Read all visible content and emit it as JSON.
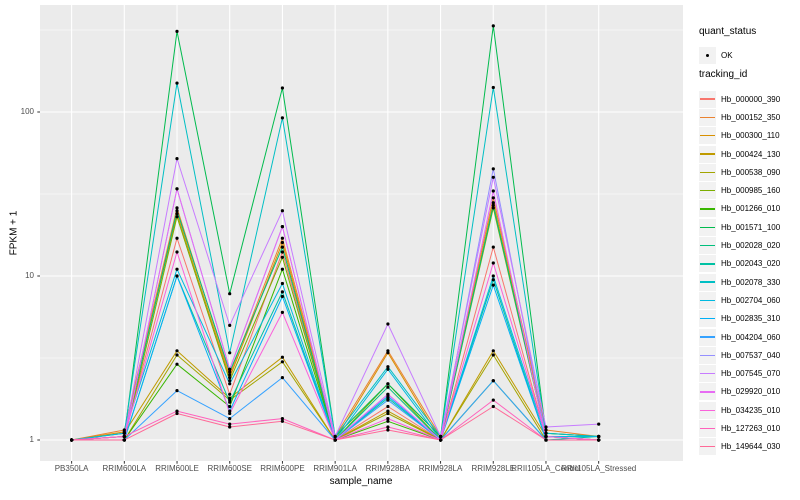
{
  "legend": {
    "quant_title": "quant_status",
    "quant_item": "OK",
    "quant_shape": "point-icon",
    "tracking_title": "tracking_id"
  },
  "colors": {
    "panel_bg": "#EBEBEB",
    "grid": "#FFFFFF",
    "legend_key_bg": "#F2F2F2",
    "tick_text": "#4D4D4D",
    "axis_tick": "#333333",
    "point": "#000000"
  },
  "chart_data": {
    "type": "line",
    "title": "",
    "xlabel": "sample_name",
    "ylabel": "FPKM + 1",
    "y_scale": "log10",
    "y_ticks": [
      1,
      10,
      100
    ],
    "ylim": [
      1,
      360
    ],
    "grid": true,
    "legend_position": "right",
    "point_shape": "filled-circle-black",
    "categories": [
      "PB350LA",
      "RRIM600LA",
      "RRIM600LE",
      "RRIM600SE",
      "RRIM600PE",
      "RRIM901LA",
      "RRIM928BA",
      "RRIM928LA",
      "RRIM928LE",
      "RRII105LA_Control",
      "RRII105LA_Stressed"
    ],
    "series": [
      {
        "name": "Hb_000000_390",
        "color": "#F8766D",
        "values": [
          1,
          1.05,
          17,
          1.9,
          14,
          1,
          1.6,
          1,
          15,
          1.05,
          1
        ]
      },
      {
        "name": "Hb_000152_350",
        "color": "#EA8331",
        "values": [
          1,
          1.15,
          26,
          2.5,
          17,
          1.05,
          3.5,
          1.05,
          30,
          1.15,
          1.05
        ]
      },
      {
        "name": "Hb_000300_110",
        "color": "#D89000",
        "values": [
          1,
          1.12,
          24,
          2.4,
          16,
          1,
          3.4,
          1,
          28,
          1.1,
          1.05
        ]
      },
      {
        "name": "Hb_000424_130",
        "color": "#C09B00",
        "values": [
          1,
          1.1,
          3.5,
          1.8,
          3.2,
          1,
          1.5,
          1,
          3.5,
          1.05,
          1
        ]
      },
      {
        "name": "Hb_000538_090",
        "color": "#A3A500",
        "values": [
          1,
          1,
          3.3,
          1.75,
          3,
          1,
          1.45,
          1,
          3.3,
          1,
          1
        ]
      },
      {
        "name": "Hb_000985_160",
        "color": "#7CAE00",
        "values": [
          1,
          1,
          23,
          2.3,
          13,
          1,
          2.2,
          1,
          26,
          1.05,
          1
        ]
      },
      {
        "name": "Hb_001266_010",
        "color": "#39B600",
        "values": [
          1,
          1,
          2.9,
          1.6,
          11,
          1,
          1.3,
          1,
          2.3,
          1,
          1
        ]
      },
      {
        "name": "Hb_001571_100",
        "color": "#00BB4E",
        "values": [
          1,
          1.05,
          310,
          7.8,
          140,
          1.05,
          2.2,
          1.05,
          335,
          1.1,
          1.05
        ]
      },
      {
        "name": "Hb_002028_020",
        "color": "#00BF7D",
        "values": [
          1,
          1.05,
          25,
          2.6,
          15,
          1,
          2.1,
          1,
          27,
          1.05,
          1
        ]
      },
      {
        "name": "Hb_002043_020",
        "color": "#00C1A3",
        "values": [
          1,
          1,
          10,
          1.7,
          8,
          1,
          1.8,
          1,
          9.5,
          1,
          1.05
        ]
      },
      {
        "name": "Hb_002078_330",
        "color": "#00BFC4",
        "values": [
          1,
          1.1,
          150,
          3.4,
          92,
          1.05,
          2.8,
          1.05,
          141,
          1.1,
          1.05
        ]
      },
      {
        "name": "Hb_002704_060",
        "color": "#00BAE0",
        "values": [
          1,
          1.1,
          11,
          2.2,
          9,
          1,
          2.7,
          1,
          10,
          1.05,
          1.05
        ]
      },
      {
        "name": "Hb_002835_310",
        "color": "#00B0F6",
        "values": [
          1,
          1,
          10,
          1.5,
          7.5,
          1,
          1.85,
          1,
          8.8,
          1,
          1
        ]
      },
      {
        "name": "Hb_004204_060",
        "color": "#35A2FF",
        "values": [
          1,
          1,
          2,
          1.35,
          2.4,
          1,
          1.75,
          1,
          2.3,
          1,
          1
        ]
      },
      {
        "name": "Hb_007537_040",
        "color": "#9590FF",
        "values": [
          1,
          1,
          34,
          2.7,
          20,
          1,
          1.9,
          1,
          45,
          1.05,
          1
        ]
      },
      {
        "name": "Hb_007545_070",
        "color": "#C77CFF",
        "values": [
          1,
          1.05,
          52,
          5,
          25,
          1.05,
          5.1,
          1.05,
          40,
          1.2,
          1.25
        ]
      },
      {
        "name": "Hb_029920_010",
        "color": "#E76BF3",
        "values": [
          1,
          1,
          34,
          2.7,
          20,
          1,
          1.9,
          1,
          33,
          1,
          1
        ]
      },
      {
        "name": "Hb_034235_010",
        "color": "#FA62DB",
        "values": [
          1,
          1.05,
          14,
          1.45,
          6,
          1,
          1.35,
          1,
          12,
          1.05,
          1
        ]
      },
      {
        "name": "Hb_127263_010",
        "color": "#FF62BC",
        "values": [
          1,
          1.05,
          1.5,
          1.25,
          1.35,
          1,
          1.2,
          1,
          1.75,
          1,
          1
        ]
      },
      {
        "name": "Hb_149644_030",
        "color": "#FF6A98",
        "values": [
          1,
          1,
          1.45,
          1.2,
          1.3,
          1,
          1.15,
          1,
          1.6,
          1,
          1
        ]
      }
    ]
  }
}
